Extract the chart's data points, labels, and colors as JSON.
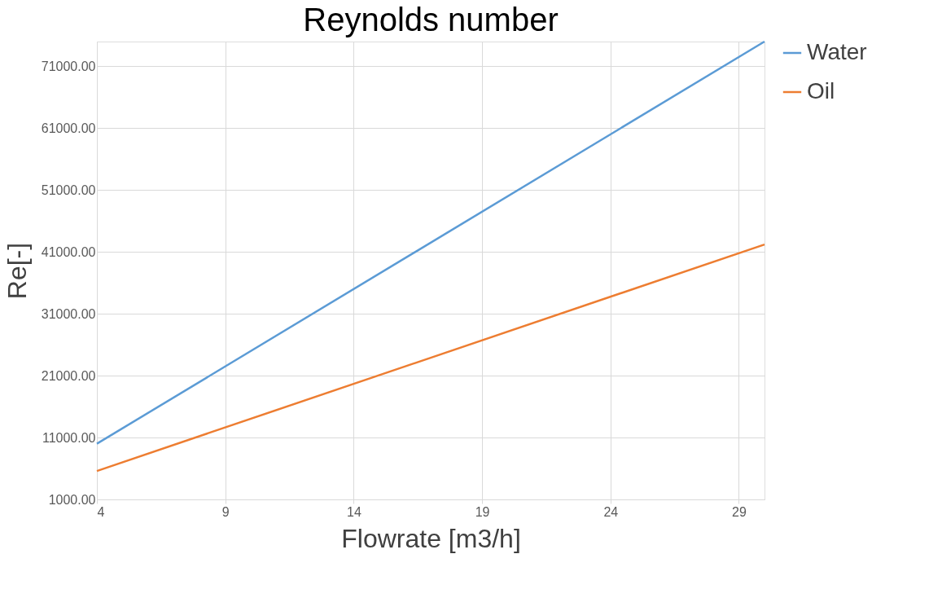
{
  "chart_data": {
    "type": "line",
    "title": "Reynolds number",
    "xlabel": "Flowrate [m3/h]",
    "ylabel": "Re[-]",
    "x": [
      4,
      30
    ],
    "series": [
      {
        "name": "Water",
        "color": "#5b9bd5",
        "values": [
          10000,
          75000
        ]
      },
      {
        "name": "Oil",
        "color": "#ed7d31",
        "values": [
          5600,
          42200
        ]
      }
    ],
    "xlim": [
      4,
      30
    ],
    "xticks": [
      4,
      9,
      14,
      19,
      24,
      29
    ],
    "ylim": [
      1000,
      75000
    ],
    "yticks": [
      {
        "value": 1000,
        "label": "1000.00"
      },
      {
        "value": 11000,
        "label": "11000.00"
      },
      {
        "value": 21000,
        "label": "21000.00"
      },
      {
        "value": 31000,
        "label": "31000.00"
      },
      {
        "value": 41000,
        "label": "41000.00"
      },
      {
        "value": 51000,
        "label": "51000.00"
      },
      {
        "value": 61000,
        "label": "61000.00"
      },
      {
        "value": 71000,
        "label": "71000.00"
      }
    ],
    "grid": true,
    "legend": "right",
    "marker": "none",
    "line_style": "solid"
  }
}
